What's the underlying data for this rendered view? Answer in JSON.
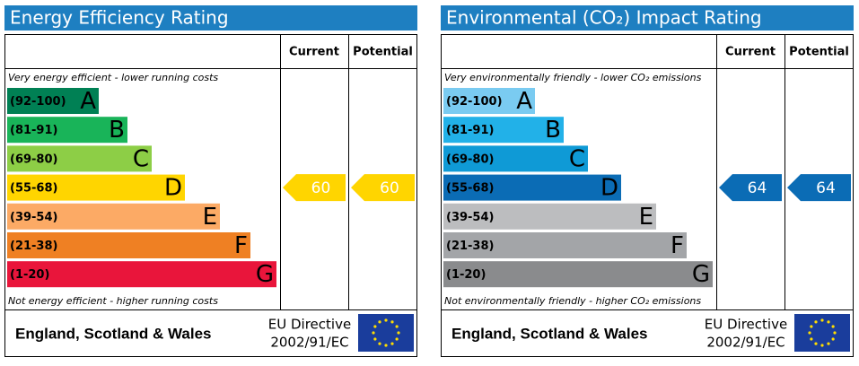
{
  "chart_data": [
    {
      "type": "epc",
      "title": "Energy Efficiency Rating",
      "columns": [
        "Current",
        "Potential"
      ],
      "top_note": "Very energy efficient - lower running costs",
      "bottom_note": "Not energy efficient - higher running costs",
      "bands": [
        {
          "range": "(92-100)",
          "letter": "A",
          "color": "#008054"
        },
        {
          "range": "(81-91)",
          "letter": "B",
          "color": "#19b459"
        },
        {
          "range": "(69-80)",
          "letter": "C",
          "color": "#8dce46"
        },
        {
          "range": "(55-68)",
          "letter": "D",
          "color": "#ffd500"
        },
        {
          "range": "(39-54)",
          "letter": "E",
          "color": "#fcaa65"
        },
        {
          "range": "(21-38)",
          "letter": "F",
          "color": "#ef8023"
        },
        {
          "range": "(1-20)",
          "letter": "G",
          "color": "#e9153b"
        }
      ],
      "current": 60,
      "potential": 60,
      "footer": {
        "region": "England, Scotland & Wales",
        "directive": "EU Directive",
        "code": "2002/91/EC"
      }
    },
    {
      "type": "epc",
      "title": "Environmental (CO₂) Impact Rating",
      "columns": [
        "Current",
        "Potential"
      ],
      "top_note": "Very environmentally friendly - lower CO₂ emissions",
      "bottom_note": "Not environmentally friendly - higher CO₂ emissions",
      "bands": [
        {
          "range": "(92-100)",
          "letter": "A",
          "color": "#7acbf1"
        },
        {
          "range": "(81-91)",
          "letter": "B",
          "color": "#22b1e8"
        },
        {
          "range": "(69-80)",
          "letter": "C",
          "color": "#0f9ad6"
        },
        {
          "range": "(55-68)",
          "letter": "D",
          "color": "#0b6cb5"
        },
        {
          "range": "(39-54)",
          "letter": "E",
          "color": "#bcbdbf"
        },
        {
          "range": "(21-38)",
          "letter": "F",
          "color": "#a3a5a8"
        },
        {
          "range": "(1-20)",
          "letter": "G",
          "color": "#8a8b8d"
        }
      ],
      "current": 64,
      "potential": 64,
      "footer": {
        "region": "England, Scotland & Wales",
        "directive": "EU Directive",
        "code": "2002/91/EC"
      }
    }
  ]
}
